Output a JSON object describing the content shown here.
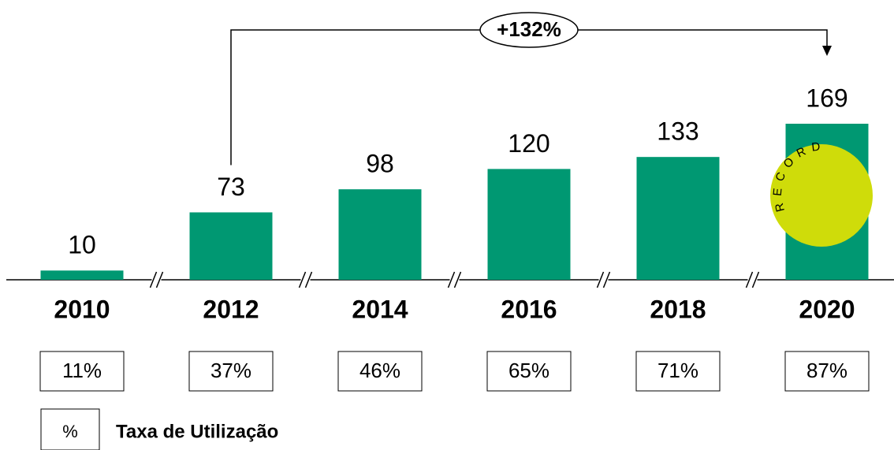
{
  "chart_data": {
    "type": "bar",
    "categories": [
      "2010",
      "2012",
      "2014",
      "2016",
      "2018",
      "2020"
    ],
    "values": [
      10,
      73,
      98,
      120,
      133,
      169
    ],
    "color": "#009872",
    "annotation": "+132%",
    "badge": "RECORD",
    "badge_color": "#cfdc0a",
    "rate_labels": [
      "11%",
      "37%",
      "46%",
      "65%",
      "71%",
      "87%"
    ],
    "legend_symbol": "%",
    "legend_label": "Taxa de Utilização"
  }
}
